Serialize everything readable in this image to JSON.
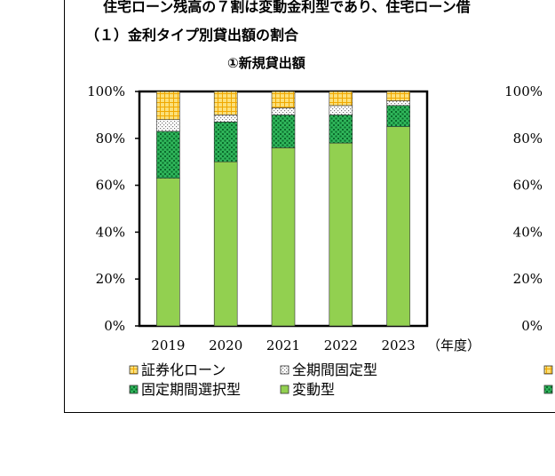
{
  "headline": "住宅ローン残高の７割は変動金利型であり、住宅ローン借",
  "section_title": "（１）金利タイプ別貸出額の割合",
  "chart_data": {
    "type": "bar",
    "stacked": true,
    "title": "①新規貸出額",
    "categories": [
      "2019",
      "2020",
      "2021",
      "2022",
      "2023"
    ],
    "x_unit_label": "（年度）",
    "ylim": [
      0,
      100
    ],
    "yticks": [
      "0%",
      "20%",
      "40%",
      "60%",
      "80%",
      "100%"
    ],
    "right_yticks": [
      "0%",
      "20%",
      "40%",
      "60%",
      "80%",
      "100%"
    ],
    "series": [
      {
        "name": "変動型",
        "values": [
          63,
          70,
          76,
          78,
          85
        ]
      },
      {
        "name": "固定期間選択型",
        "values": [
          20,
          17,
          14,
          12,
          9
        ]
      },
      {
        "name": "全期間固定型",
        "values": [
          5,
          3,
          3,
          4,
          2
        ]
      },
      {
        "name": "証券化ローン",
        "values": [
          12,
          10,
          7,
          6,
          4
        ]
      }
    ],
    "legend": [
      "証券化ローン",
      "全期間固定型",
      "固定期間選択型",
      "変動型"
    ],
    "colors": {
      "変動型": "#92d050",
      "固定期間選択型": "#1e9c4a",
      "全期間固定型": "#cccccc",
      "証券化ローン": "#f5c842"
    },
    "grid": false
  }
}
